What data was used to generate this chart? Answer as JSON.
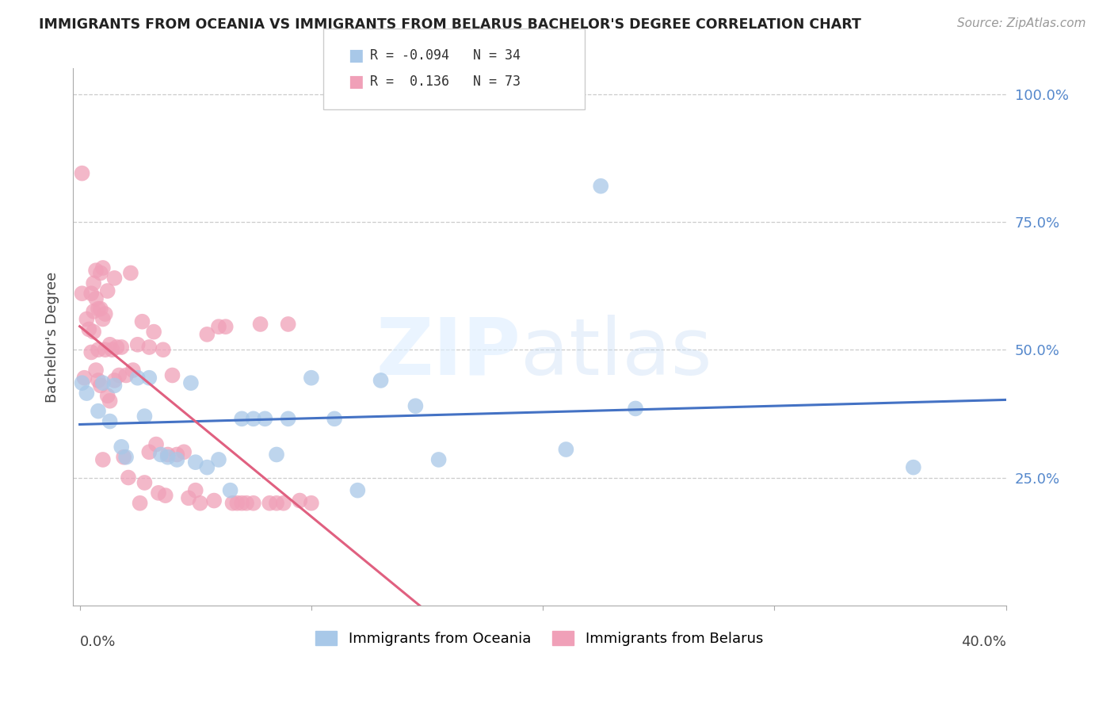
{
  "title": "IMMIGRANTS FROM OCEANIA VS IMMIGRANTS FROM BELARUS BACHELOR'S DEGREE CORRELATION CHART",
  "source": "Source: ZipAtlas.com",
  "ylabel": "Bachelor's Degree",
  "ytick_labels": [
    "100.0%",
    "75.0%",
    "50.0%",
    "25.0%"
  ],
  "ytick_values": [
    1.0,
    0.75,
    0.5,
    0.25
  ],
  "xlim": [
    0.0,
    0.4
  ],
  "ylim": [
    0.0,
    1.05
  ],
  "legend_r_oceania": "-0.094",
  "legend_n_oceania": "34",
  "legend_r_belarus": "0.136",
  "legend_n_belarus": "73",
  "oceania_color": "#a8c8e8",
  "belarus_color": "#f0a0b8",
  "trend_oceania_color": "#4472c4",
  "trend_belarus_solid_color": "#e06080",
  "trend_belarus_dashed_color": "#e8a0b8",
  "oceania_points_x": [
    0.001,
    0.003,
    0.008,
    0.01,
    0.013,
    0.015,
    0.018,
    0.02,
    0.025,
    0.028,
    0.03,
    0.035,
    0.038,
    0.042,
    0.048,
    0.05,
    0.055,
    0.06,
    0.065,
    0.07,
    0.075,
    0.08,
    0.085,
    0.09,
    0.1,
    0.11,
    0.12,
    0.13,
    0.145,
    0.155,
    0.21,
    0.225,
    0.24,
    0.36
  ],
  "oceania_points_y": [
    0.435,
    0.415,
    0.38,
    0.435,
    0.36,
    0.43,
    0.31,
    0.29,
    0.445,
    0.37,
    0.445,
    0.295,
    0.29,
    0.285,
    0.435,
    0.28,
    0.27,
    0.285,
    0.225,
    0.365,
    0.365,
    0.365,
    0.295,
    0.365,
    0.445,
    0.365,
    0.225,
    0.44,
    0.39,
    0.285,
    0.305,
    0.82,
    0.385,
    0.27
  ],
  "belarus_points_x": [
    0.001,
    0.001,
    0.002,
    0.003,
    0.004,
    0.005,
    0.005,
    0.006,
    0.006,
    0.006,
    0.007,
    0.007,
    0.007,
    0.008,
    0.008,
    0.008,
    0.009,
    0.009,
    0.009,
    0.01,
    0.01,
    0.01,
    0.011,
    0.011,
    0.012,
    0.012,
    0.013,
    0.013,
    0.014,
    0.015,
    0.015,
    0.016,
    0.017,
    0.018,
    0.019,
    0.02,
    0.021,
    0.022,
    0.023,
    0.025,
    0.026,
    0.027,
    0.028,
    0.03,
    0.03,
    0.032,
    0.033,
    0.034,
    0.036,
    0.037,
    0.038,
    0.04,
    0.042,
    0.045,
    0.047,
    0.05,
    0.052,
    0.055,
    0.058,
    0.06,
    0.063,
    0.066,
    0.068,
    0.07,
    0.072,
    0.075,
    0.078,
    0.082,
    0.085,
    0.088,
    0.09,
    0.095,
    0.1
  ],
  "belarus_points_y": [
    0.845,
    0.61,
    0.445,
    0.56,
    0.54,
    0.61,
    0.495,
    0.63,
    0.575,
    0.535,
    0.655,
    0.6,
    0.46,
    0.58,
    0.5,
    0.44,
    0.65,
    0.58,
    0.43,
    0.66,
    0.56,
    0.285,
    0.57,
    0.5,
    0.41,
    0.615,
    0.51,
    0.4,
    0.5,
    0.64,
    0.44,
    0.505,
    0.45,
    0.505,
    0.29,
    0.45,
    0.25,
    0.65,
    0.46,
    0.51,
    0.2,
    0.555,
    0.24,
    0.505,
    0.3,
    0.535,
    0.315,
    0.22,
    0.5,
    0.215,
    0.295,
    0.45,
    0.295,
    0.3,
    0.21,
    0.225,
    0.2,
    0.53,
    0.205,
    0.545,
    0.545,
    0.2,
    0.2,
    0.2,
    0.2,
    0.2,
    0.55,
    0.2,
    0.2,
    0.2,
    0.55,
    0.205,
    0.2
  ]
}
